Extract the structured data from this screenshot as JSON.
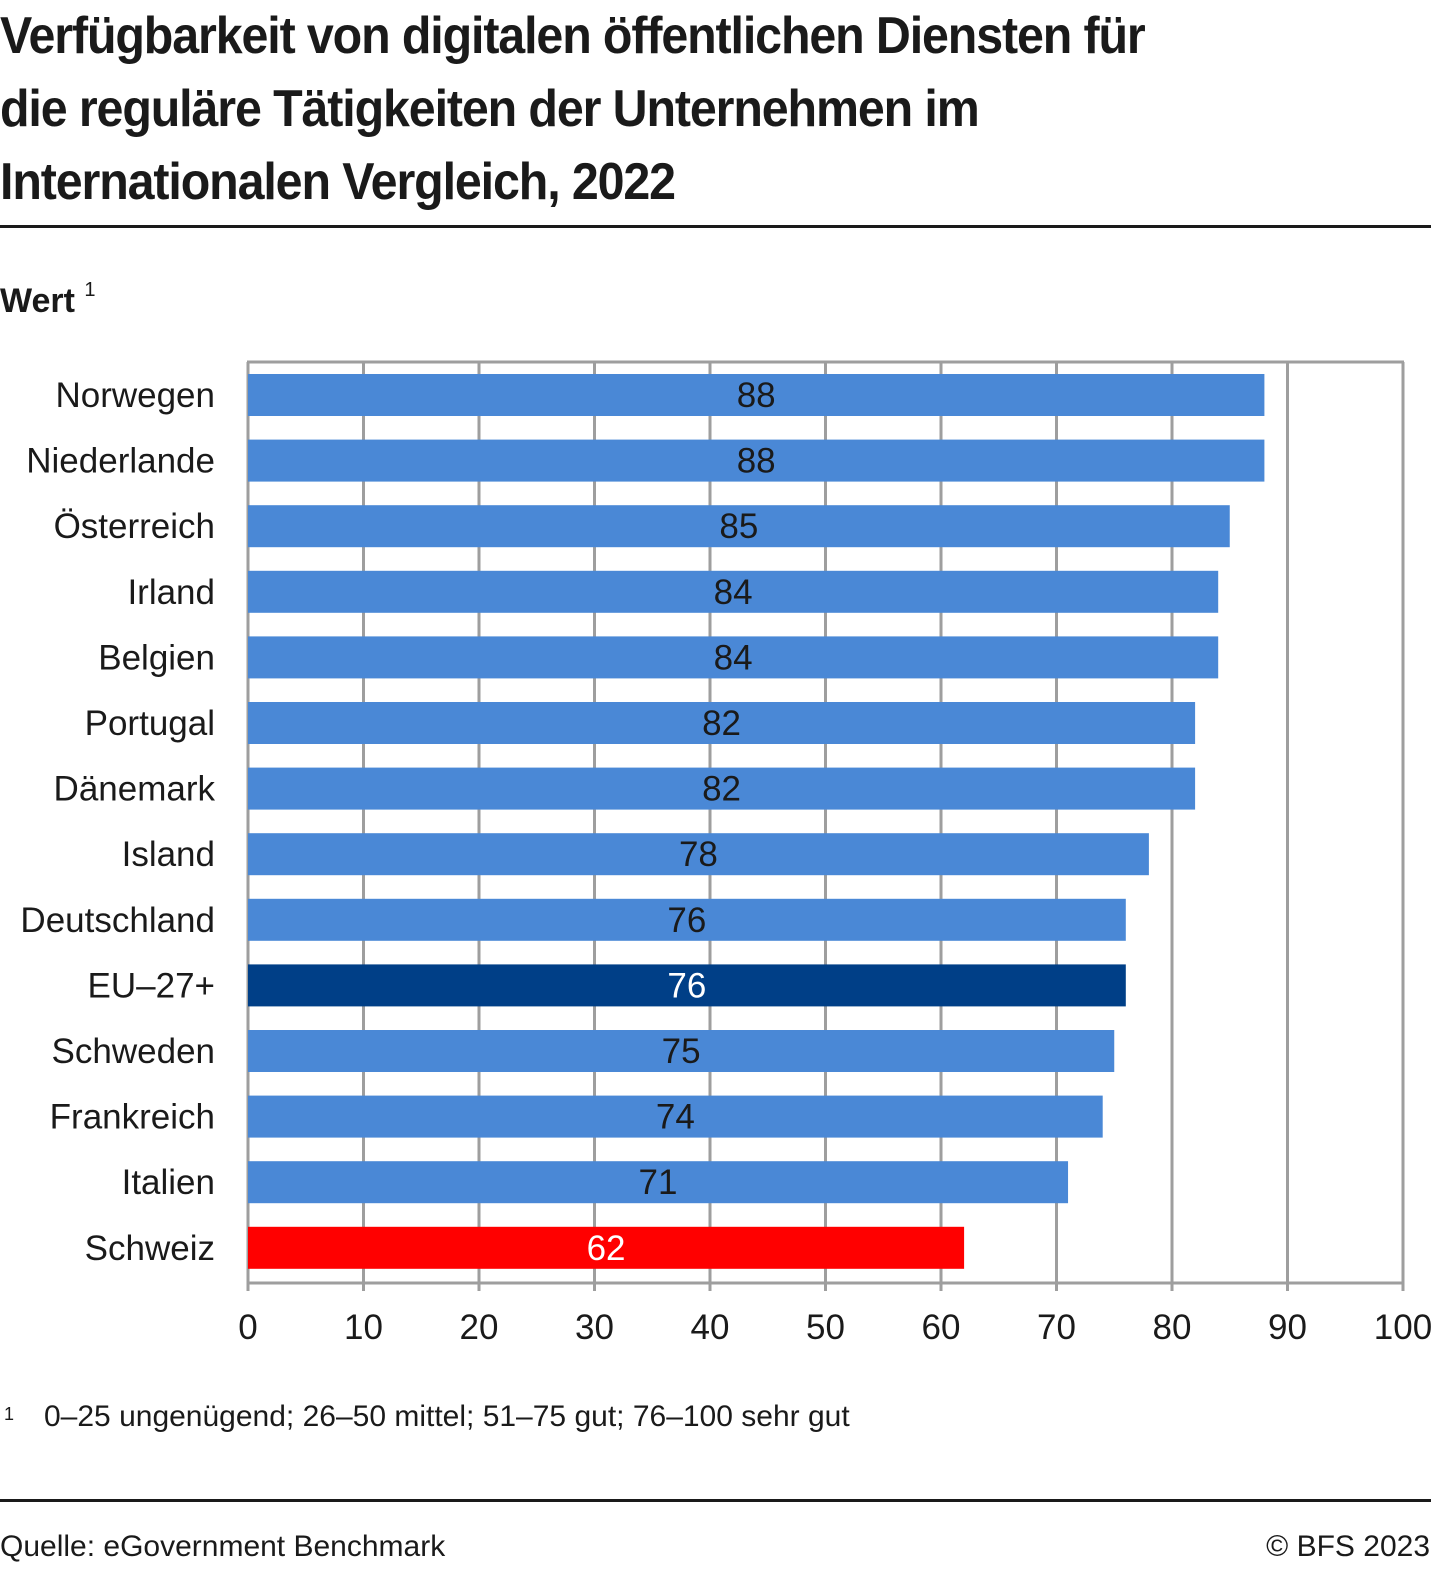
{
  "title": "Verfügbarkeit von digitalen öffentlichen Diensten für\ndie reguläre Tätigkeiten der Unternehmen im\nInternationalen Vergleich, 2022",
  "unit_label": "Wert",
  "unit_footnote_mark": "1",
  "footnote": {
    "mark": "1",
    "text": "0–25 ungenügend; 26–50 mittel; 51–75 gut; 76–100 sehr gut"
  },
  "source": "Quelle: eGovernment Benchmark",
  "copyright": "© BFS 2023",
  "colors": {
    "default_bar": "#4a88d6",
    "eu_bar": "#003f87",
    "switzerland_bar": "#ff0000",
    "grid": "#9e9e9e",
    "label_dark": "#1a1a1a",
    "label_light": "#ffffff"
  },
  "chart_data": {
    "type": "bar",
    "orientation": "horizontal",
    "title": "Verfügbarkeit von digitalen öffentlichen Diensten für die reguläre Tätigkeiten der Unternehmen im Internationalen Vergleich, 2022",
    "xlabel": "",
    "ylabel": "Wert",
    "xlim": [
      0,
      100
    ],
    "xticks": [
      0,
      10,
      20,
      30,
      40,
      50,
      60,
      70,
      80,
      90,
      100
    ],
    "grid": true,
    "categories": [
      "Norwegen",
      "Niederlande",
      "Österreich",
      "Irland",
      "Belgien",
      "Portugal",
      "Dänemark",
      "Island",
      "Deutschland",
      "EU–27+",
      "Schweden",
      "Frankreich",
      "Italien",
      "Schweiz"
    ],
    "values": [
      88,
      88,
      85,
      84,
      84,
      82,
      82,
      78,
      76,
      76,
      75,
      74,
      71,
      62
    ],
    "highlight": {
      "EU–27+": "eu_bar",
      "Schweiz": "switzerland_bar"
    },
    "data_labels": true
  }
}
